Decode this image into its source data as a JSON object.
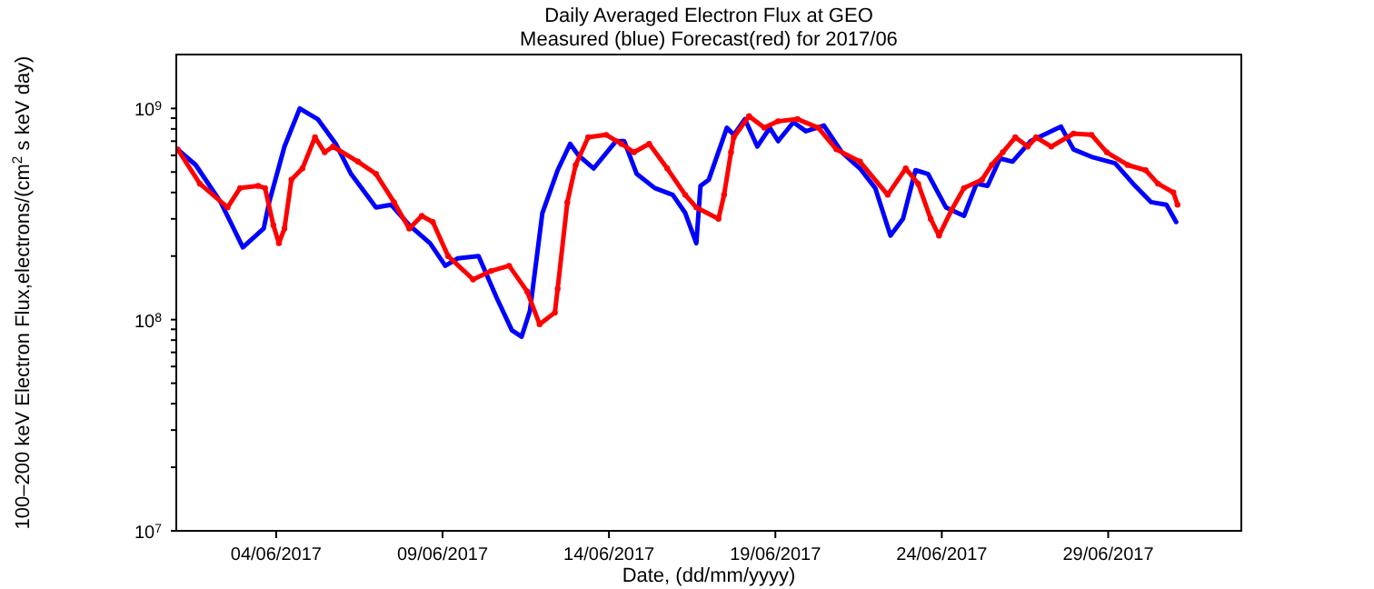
{
  "chart_data": {
    "type": "line",
    "title": "Daily Averaged Electron Flux at GEO",
    "subtitle": "Measured (blue) Forecast(red) for 2017/06",
    "xlabel": "Date, (dd/mm/yyyy)",
    "ylabel": "100–200 keV Electron Flux,electrons/(cm$^{2}$ s keV day)",
    "log": true,
    "xlim": [
      "2017-06-01",
      "2017-07-03"
    ],
    "xticks": [
      {
        "value": "2017-06-04",
        "label": "04/06/2017"
      },
      {
        "value": "2017-06-09",
        "label": "09/06/2017"
      },
      {
        "value": "2017-06-14",
        "label": "14/06/2017"
      },
      {
        "value": "2017-06-19",
        "label": "19/06/2017"
      },
      {
        "value": "2017-06-24",
        "label": "24/06/2017"
      },
      {
        "value": "2017-06-29",
        "label": "29/06/2017"
      }
    ],
    "ylim": [
      10000000,
      1800000000
    ],
    "yticks": [
      {
        "value": 10000000,
        "label": "10$^{7}$"
      },
      {
        "value": 20000000,
        "label": null
      },
      {
        "value": 30000000,
        "label": null
      },
      {
        "value": 40000000,
        "label": null
      },
      {
        "value": 50000000,
        "label": null
      },
      {
        "value": 60000000,
        "label": null
      },
      {
        "value": 70000000,
        "label": null
      },
      {
        "value": 80000000,
        "label": null
      },
      {
        "value": 90000000,
        "label": null
      },
      {
        "value": 100000000,
        "label": "10$^{8}$"
      },
      {
        "value": 200000000,
        "label": null
      },
      {
        "value": 300000000,
        "label": null
      },
      {
        "value": 400000000,
        "label": null
      },
      {
        "value": 500000000,
        "label": null
      },
      {
        "value": 600000000,
        "label": null
      },
      {
        "value": 700000000,
        "label": null
      },
      {
        "value": 800000000,
        "label": null
      },
      {
        "value": 900000000,
        "label": null
      },
      {
        "value": 1000000000,
        "label": "10$^{9}$"
      }
    ],
    "series": [
      {
        "type": "line",
        "marker": "none",
        "color": "#0000ff",
        "x": [
          "2017-06-01T01:00",
          "2017-06-01T14:00",
          "2017-06-02T08:00",
          "2017-06-03T00:00",
          "2017-06-03T15:00",
          "2017-06-03T19:00",
          "2017-06-04T06:00",
          "2017-06-04T17:00",
          "2017-06-05T06:00",
          "2017-06-05T19:00",
          "2017-06-06T06:00",
          "2017-06-07T00:00",
          "2017-06-07T11:00",
          "2017-06-08T00:00",
          "2017-06-08T15:00",
          "2017-06-09T02:00",
          "2017-06-09T11:00",
          "2017-06-10T02:00",
          "2017-06-10T15:00",
          "2017-06-11T02:00",
          "2017-06-11T09:00",
          "2017-06-11T15:00",
          "2017-06-12T00:00",
          "2017-06-12T11:00",
          "2017-06-12T20:00",
          "2017-06-13T02:00",
          "2017-06-13T13:00",
          "2017-06-14T05:00",
          "2017-06-14T11:00",
          "2017-06-14T20:00",
          "2017-06-15T09:00",
          "2017-06-15T22:00",
          "2017-06-16T07:00",
          "2017-06-16T15:00",
          "2017-06-16T18:00",
          "2017-06-17T00:00",
          "2017-06-17T13:00",
          "2017-06-17T18:00",
          "2017-06-18T02:00",
          "2017-06-18T11:00",
          "2017-06-18T20:00",
          "2017-06-19T02:00",
          "2017-06-19T13:00",
          "2017-06-19T22:00",
          "2017-06-20T11:00",
          "2017-06-21T00:00",
          "2017-06-21T13:00",
          "2017-06-22T00:00",
          "2017-06-22T11:00",
          "2017-06-22T20:00",
          "2017-06-23T05:00",
          "2017-06-23T14:00",
          "2017-06-24T03:00",
          "2017-06-24T16:00",
          "2017-06-25T01:00",
          "2017-06-25T09:00",
          "2017-06-25T18:00",
          "2017-06-26T03:00",
          "2017-06-26T16:00",
          "2017-06-27T14:00",
          "2017-06-27T23:00",
          "2017-06-28T12:00",
          "2017-06-29T05:00",
          "2017-06-29T18:00",
          "2017-06-30T07:00",
          "2017-06-30T18:00",
          "2017-07-01T01:00"
        ],
        "values": [
          640000000,
          540000000,
          360000000,
          220000000,
          270000000,
          360000000,
          660000000,
          1000000000,
          890000000,
          680000000,
          490000000,
          340000000,
          350000000,
          280000000,
          230000000,
          180000000,
          195000000,
          200000000,
          127000000,
          89000000,
          83000000,
          110000000,
          320000000,
          510000000,
          680000000,
          600000000,
          520000000,
          700000000,
          700000000,
          490000000,
          420000000,
          390000000,
          320000000,
          230000000,
          430000000,
          460000000,
          810000000,
          750000000,
          890000000,
          660000000,
          810000000,
          700000000,
          860000000,
          780000000,
          830000000,
          620000000,
          520000000,
          420000000,
          250000000,
          300000000,
          510000000,
          490000000,
          340000000,
          310000000,
          440000000,
          430000000,
          580000000,
          560000000,
          700000000,
          820000000,
          640000000,
          590000000,
          550000000,
          440000000,
          360000000,
          350000000,
          290000000
        ]
      },
      {
        "type": "line",
        "marker": "circle",
        "color": "#ff0000",
        "x": [
          "2017-06-01T01:00",
          "2017-06-01T17:00",
          "2017-06-02T13:00",
          "2017-06-02T22:00",
          "2017-06-03T11:00",
          "2017-06-03T16:00",
          "2017-06-03T22:00",
          "2017-06-04T02:00",
          "2017-06-04T06:00",
          "2017-06-04T11:00",
          "2017-06-04T19:00",
          "2017-06-05T04:00",
          "2017-06-05T11:00",
          "2017-06-05T17:00",
          "2017-06-06T11:00",
          "2017-06-07T00:00",
          "2017-06-07T13:00",
          "2017-06-08T00:00",
          "2017-06-08T09:00",
          "2017-06-08T17:00",
          "2017-06-09T04:00",
          "2017-06-09T22:00",
          "2017-06-10T11:00",
          "2017-06-11T00:00",
          "2017-06-11T13:00",
          "2017-06-11T22:00",
          "2017-06-12T09:00",
          "2017-06-12T11:00",
          "2017-06-12T18:00",
          "2017-06-13T00:00",
          "2017-06-13T09:00",
          "2017-06-13T22:00",
          "2017-06-14T09:00",
          "2017-06-14T18:00",
          "2017-06-15T05:00",
          "2017-06-15T18:00",
          "2017-06-16T07:00",
          "2017-06-16T15:00",
          "2017-06-17T07:00",
          "2017-06-17T11:00",
          "2017-06-17T16:00",
          "2017-06-17T18:00",
          "2017-06-18T05:00",
          "2017-06-18T16:00",
          "2017-06-19T02:00",
          "2017-06-19T16:00",
          "2017-06-20T07:00",
          "2017-06-20T20:00",
          "2017-06-21T13:00",
          "2017-06-22T09:00",
          "2017-06-22T22:00",
          "2017-06-23T07:00",
          "2017-06-23T16:00",
          "2017-06-23T22:00",
          "2017-06-24T07:00",
          "2017-06-24T16:00",
          "2017-06-25T05:00",
          "2017-06-25T12:00",
          "2017-06-25T20:00",
          "2017-06-26T05:00",
          "2017-06-26T14:00",
          "2017-06-26T20:00",
          "2017-06-27T07:00",
          "2017-06-27T23:00",
          "2017-06-28T12:00",
          "2017-06-28T23:00",
          "2017-06-29T14:00",
          "2017-06-30T03:00",
          "2017-06-30T12:00",
          "2017-06-30T23:00",
          "2017-07-01T02:00"
        ],
        "values": [
          640000000,
          440000000,
          340000000,
          420000000,
          430000000,
          420000000,
          280000000,
          230000000,
          270000000,
          460000000,
          520000000,
          730000000,
          620000000,
          660000000,
          560000000,
          490000000,
          360000000,
          270000000,
          310000000,
          290000000,
          200000000,
          155000000,
          170000000,
          180000000,
          136000000,
          95000000,
          108000000,
          140000000,
          360000000,
          540000000,
          730000000,
          750000000,
          680000000,
          620000000,
          680000000,
          520000000,
          390000000,
          340000000,
          300000000,
          390000000,
          620000000,
          730000000,
          920000000,
          810000000,
          870000000,
          890000000,
          810000000,
          640000000,
          560000000,
          390000000,
          520000000,
          440000000,
          300000000,
          250000000,
          330000000,
          420000000,
          460000000,
          540000000,
          620000000,
          730000000,
          660000000,
          730000000,
          660000000,
          760000000,
          750000000,
          620000000,
          540000000,
          510000000,
          440000000,
          400000000,
          350000000
        ]
      }
    ]
  }
}
